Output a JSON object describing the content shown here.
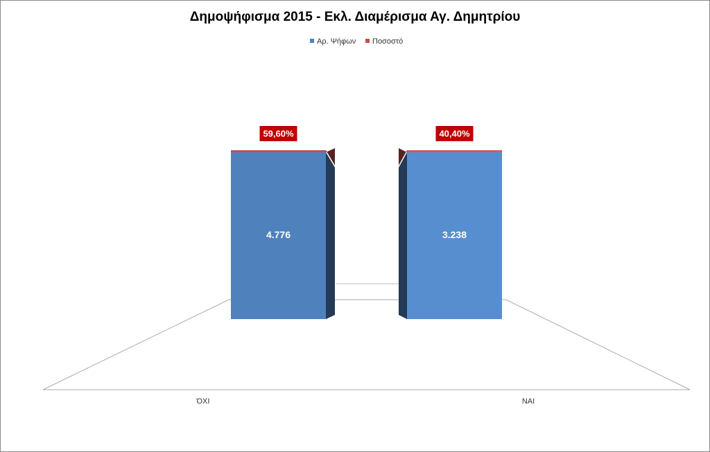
{
  "chart_data": {
    "type": "bar",
    "stacking": "percent",
    "title": "Δημοψήφισμα 2015 - Εκλ. Διαμέρισμα Αγ. Δημητρίου",
    "categories": [
      "ΌΧΙ",
      "ΝΑΙ"
    ],
    "series": [
      {
        "name": "Αρ. Ψήφων",
        "color": "#4f81bd",
        "values": [
          4776,
          3238
        ],
        "value_labels": [
          "4.776",
          "3.238"
        ]
      },
      {
        "name": "Ποσοστό",
        "color": "#c0504d",
        "values": [
          59.6,
          40.4
        ],
        "value_labels": [
          "59,60%",
          "40,40%"
        ]
      }
    ],
    "legend": "top"
  }
}
